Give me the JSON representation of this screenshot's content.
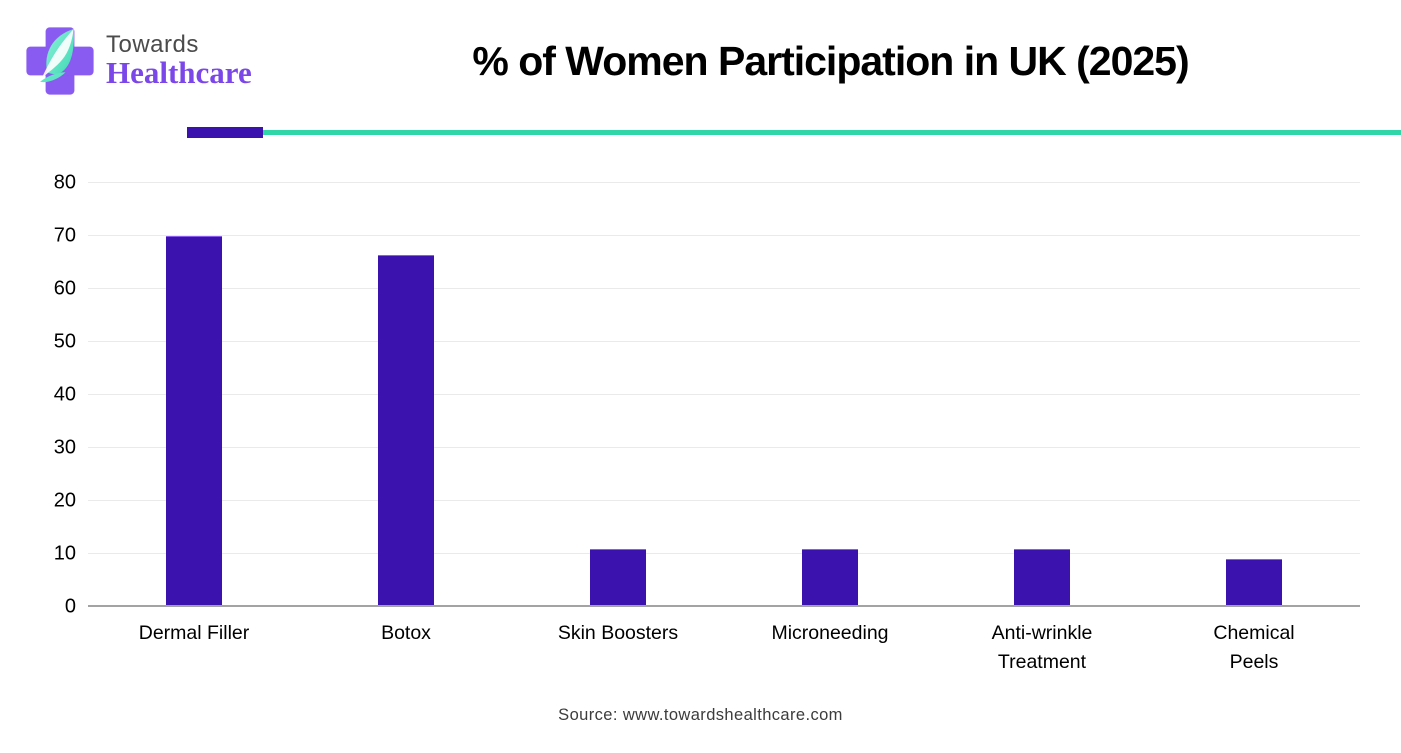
{
  "logo": {
    "line1": "Towards",
    "line2": "Healthcare",
    "cross_color": "#8a5bf0",
    "leaf_color_light": "#7deed4",
    "leaf_color_dark": "#3fd9b4"
  },
  "header": {
    "title": "% of Women Participation in UK (2025)"
  },
  "divider": {
    "purple_color": "#3b12ae",
    "teal_color": "#30d5a8"
  },
  "source": "Source: www.towardshealthcare.com",
  "chart_data": {
    "type": "bar",
    "title": "% of Women Participation in UK (2025)",
    "categories": [
      "Dermal Filler",
      "Botox",
      "Skin Boosters",
      "Microneeding",
      "Anti-wrinkle\nTreatment",
      "Chemical\nPeels"
    ],
    "values": [
      70,
      66.5,
      11,
      11,
      11,
      9
    ],
    "xlabel": "",
    "ylabel": "",
    "ylim": [
      0,
      80
    ],
    "ytick_step": 10,
    "grid": true,
    "legend": "none",
    "bar_color": "#3b12ae"
  }
}
